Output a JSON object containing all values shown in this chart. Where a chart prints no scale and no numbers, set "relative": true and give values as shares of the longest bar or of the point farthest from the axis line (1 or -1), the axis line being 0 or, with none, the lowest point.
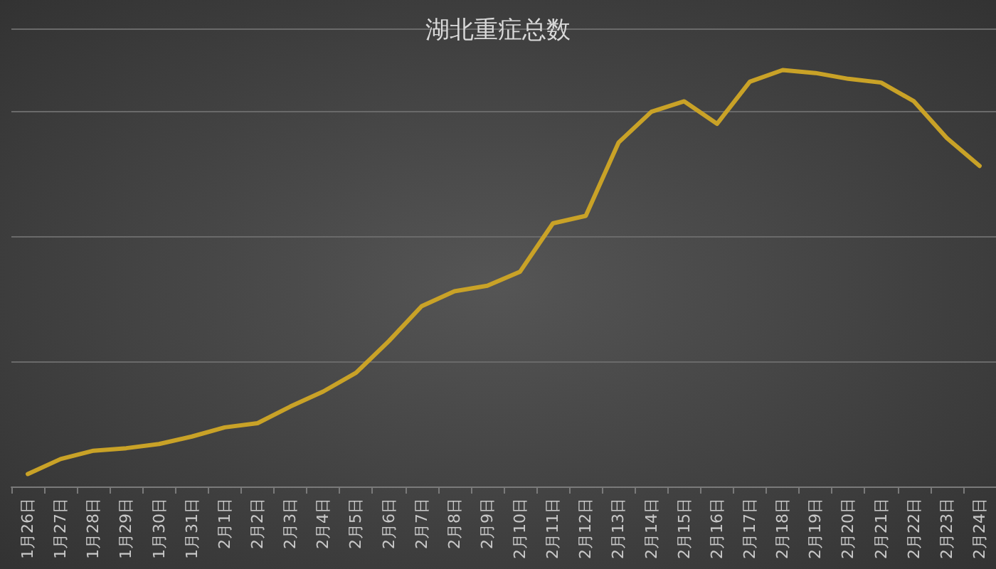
{
  "chart_data": {
    "type": "line",
    "title": "湖北重症总数",
    "categories": [
      "1月26日",
      "1月27日",
      "1月28日",
      "1月29日",
      "1月30日",
      "1月31日",
      "2月1日",
      "2月2日",
      "2月3日",
      "2月4日",
      "2月5日",
      "2月6日",
      "2月7日",
      "2月8日",
      "2月9日",
      "2月10日",
      "2月11日",
      "2月12日",
      "2月13日",
      "2月14日",
      "2月15日",
      "2月16日",
      "2月17日",
      "2月18日",
      "2月19日",
      "2月20日",
      "2月21日",
      "2月22日",
      "2月23日",
      "2月24日"
    ],
    "values": [
      0.03,
      0.066,
      0.086,
      0.092,
      0.102,
      0.12,
      0.142,
      0.152,
      0.192,
      0.228,
      0.273,
      0.349,
      0.433,
      0.469,
      0.482,
      0.516,
      0.632,
      0.65,
      0.826,
      0.9,
      0.925,
      0.871,
      0.972,
      1,
      0.993,
      0.979,
      0.97,
      0.925,
      0.837,
      0.77
    ],
    "color": "#c9a227",
    "relative": true,
    "grid": "y",
    "marker": "none",
    "line_style": "solid"
  }
}
